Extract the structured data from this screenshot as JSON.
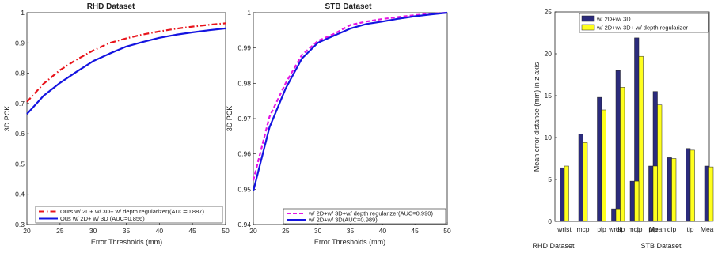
{
  "chart_data": [
    {
      "type": "line",
      "title": "RHD Dataset",
      "xlabel": "Error Thresholds (mm)",
      "ylabel": "3D PCK",
      "xlim": [
        20,
        50
      ],
      "ylim": [
        0.3,
        1
      ],
      "xticks": [
        "20",
        "25",
        "30",
        "35",
        "40",
        "45",
        "50"
      ],
      "yticks": [
        "0.3",
        "0.4",
        "0.5",
        "0.6",
        "0.7",
        "0.8",
        "0.9",
        "1"
      ],
      "legend_position": "bottom",
      "series": [
        {
          "name": "Ours w/ 2D+ w/ 3D+ w/ depth regularizer((AUC=0.887)",
          "color": "#e8141b",
          "dash": "dashdot",
          "x": [
            20,
            22.5,
            25,
            27.5,
            30,
            32.5,
            35,
            37.5,
            40,
            42.5,
            45,
            47.5,
            50
          ],
          "y": [
            0.705,
            0.765,
            0.81,
            0.845,
            0.875,
            0.9,
            0.915,
            0.928,
            0.938,
            0.947,
            0.954,
            0.96,
            0.965
          ]
        },
        {
          "name": "Ous w/ 2D+ w/ 3D (AUC=0.856)",
          "color": "#1414e0",
          "dash": "solid",
          "x": [
            20,
            22.5,
            25,
            27.5,
            30,
            32.5,
            35,
            37.5,
            40,
            42.5,
            45,
            47.5,
            50
          ],
          "y": [
            0.665,
            0.725,
            0.768,
            0.805,
            0.84,
            0.865,
            0.888,
            0.903,
            0.917,
            0.927,
            0.935,
            0.942,
            0.948
          ]
        }
      ]
    },
    {
      "type": "line",
      "title": "STB Dataset",
      "xlabel": "Error Thresholds (mm)",
      "ylabel": "3D PCK",
      "xlim": [
        20,
        50
      ],
      "ylim": [
        0.94,
        1
      ],
      "xticks": [
        "20",
        "25",
        "30",
        "35",
        "40",
        "45",
        "50"
      ],
      "yticks": [
        "0.94",
        "0.95",
        "0.96",
        "0.97",
        "0.98",
        "0.99",
        "1"
      ],
      "legend_position": "bottom-right",
      "series": [
        {
          "name": "w/ 2D+w/ 3D+w/ depth regularizer(AUC=0.990)",
          "color": "#e414e4",
          "dash": "dashed",
          "x": [
            20,
            22.5,
            25,
            27.5,
            30,
            32.5,
            35,
            37.5,
            40,
            42.5,
            45,
            47.5,
            50
          ],
          "y": [
            0.9525,
            0.9705,
            0.98,
            0.988,
            0.992,
            0.994,
            0.9965,
            0.9975,
            0.9982,
            0.9988,
            0.9993,
            0.9997,
            1.0
          ]
        },
        {
          "name": "w/ 2D+w/ 3D(AUC=0.989)",
          "color": "#1414e0",
          "dash": "solid",
          "x": [
            20,
            22.5,
            25,
            27.5,
            30,
            32.5,
            35,
            37.5,
            40,
            42.5,
            45,
            47.5,
            50
          ],
          "y": [
            0.9495,
            0.9675,
            0.9785,
            0.987,
            0.9915,
            0.9935,
            0.9955,
            0.9968,
            0.9975,
            0.9983,
            0.999,
            0.9995,
            1.0
          ]
        }
      ]
    },
    {
      "type": "bar",
      "ylabel": "Mean error distance (mm) in z axis",
      "ylim": [
        0,
        25
      ],
      "yticks": [
        "0",
        "5",
        "10",
        "15",
        "20",
        "25"
      ],
      "groups": [
        "RHD Dataset",
        "STB Dataset"
      ],
      "categories": [
        "wrist",
        "mcp",
        "pip",
        "dip",
        "tip",
        "Mean",
        "wrist",
        "mcp",
        "pip",
        "dip",
        "tip",
        "Mean"
      ],
      "legend_position": "top-right",
      "series": [
        {
          "name": "w/ 2D+w/ 3D",
          "color": "#2b2b7c",
          "values": [
            6.4,
            10.4,
            14.8,
            18.0,
            21.9,
            15.5,
            1.5,
            4.8,
            6.6,
            7.6,
            8.7,
            6.6
          ]
        },
        {
          "name": "w/ 2D+w/ 3D+ w/ depth regularizer",
          "color": "#ffff1e",
          "values": [
            6.6,
            9.4,
            13.3,
            16.0,
            19.7,
            13.9,
            1.5,
            4.8,
            6.6,
            7.5,
            8.5,
            6.5
          ]
        }
      ]
    }
  ]
}
